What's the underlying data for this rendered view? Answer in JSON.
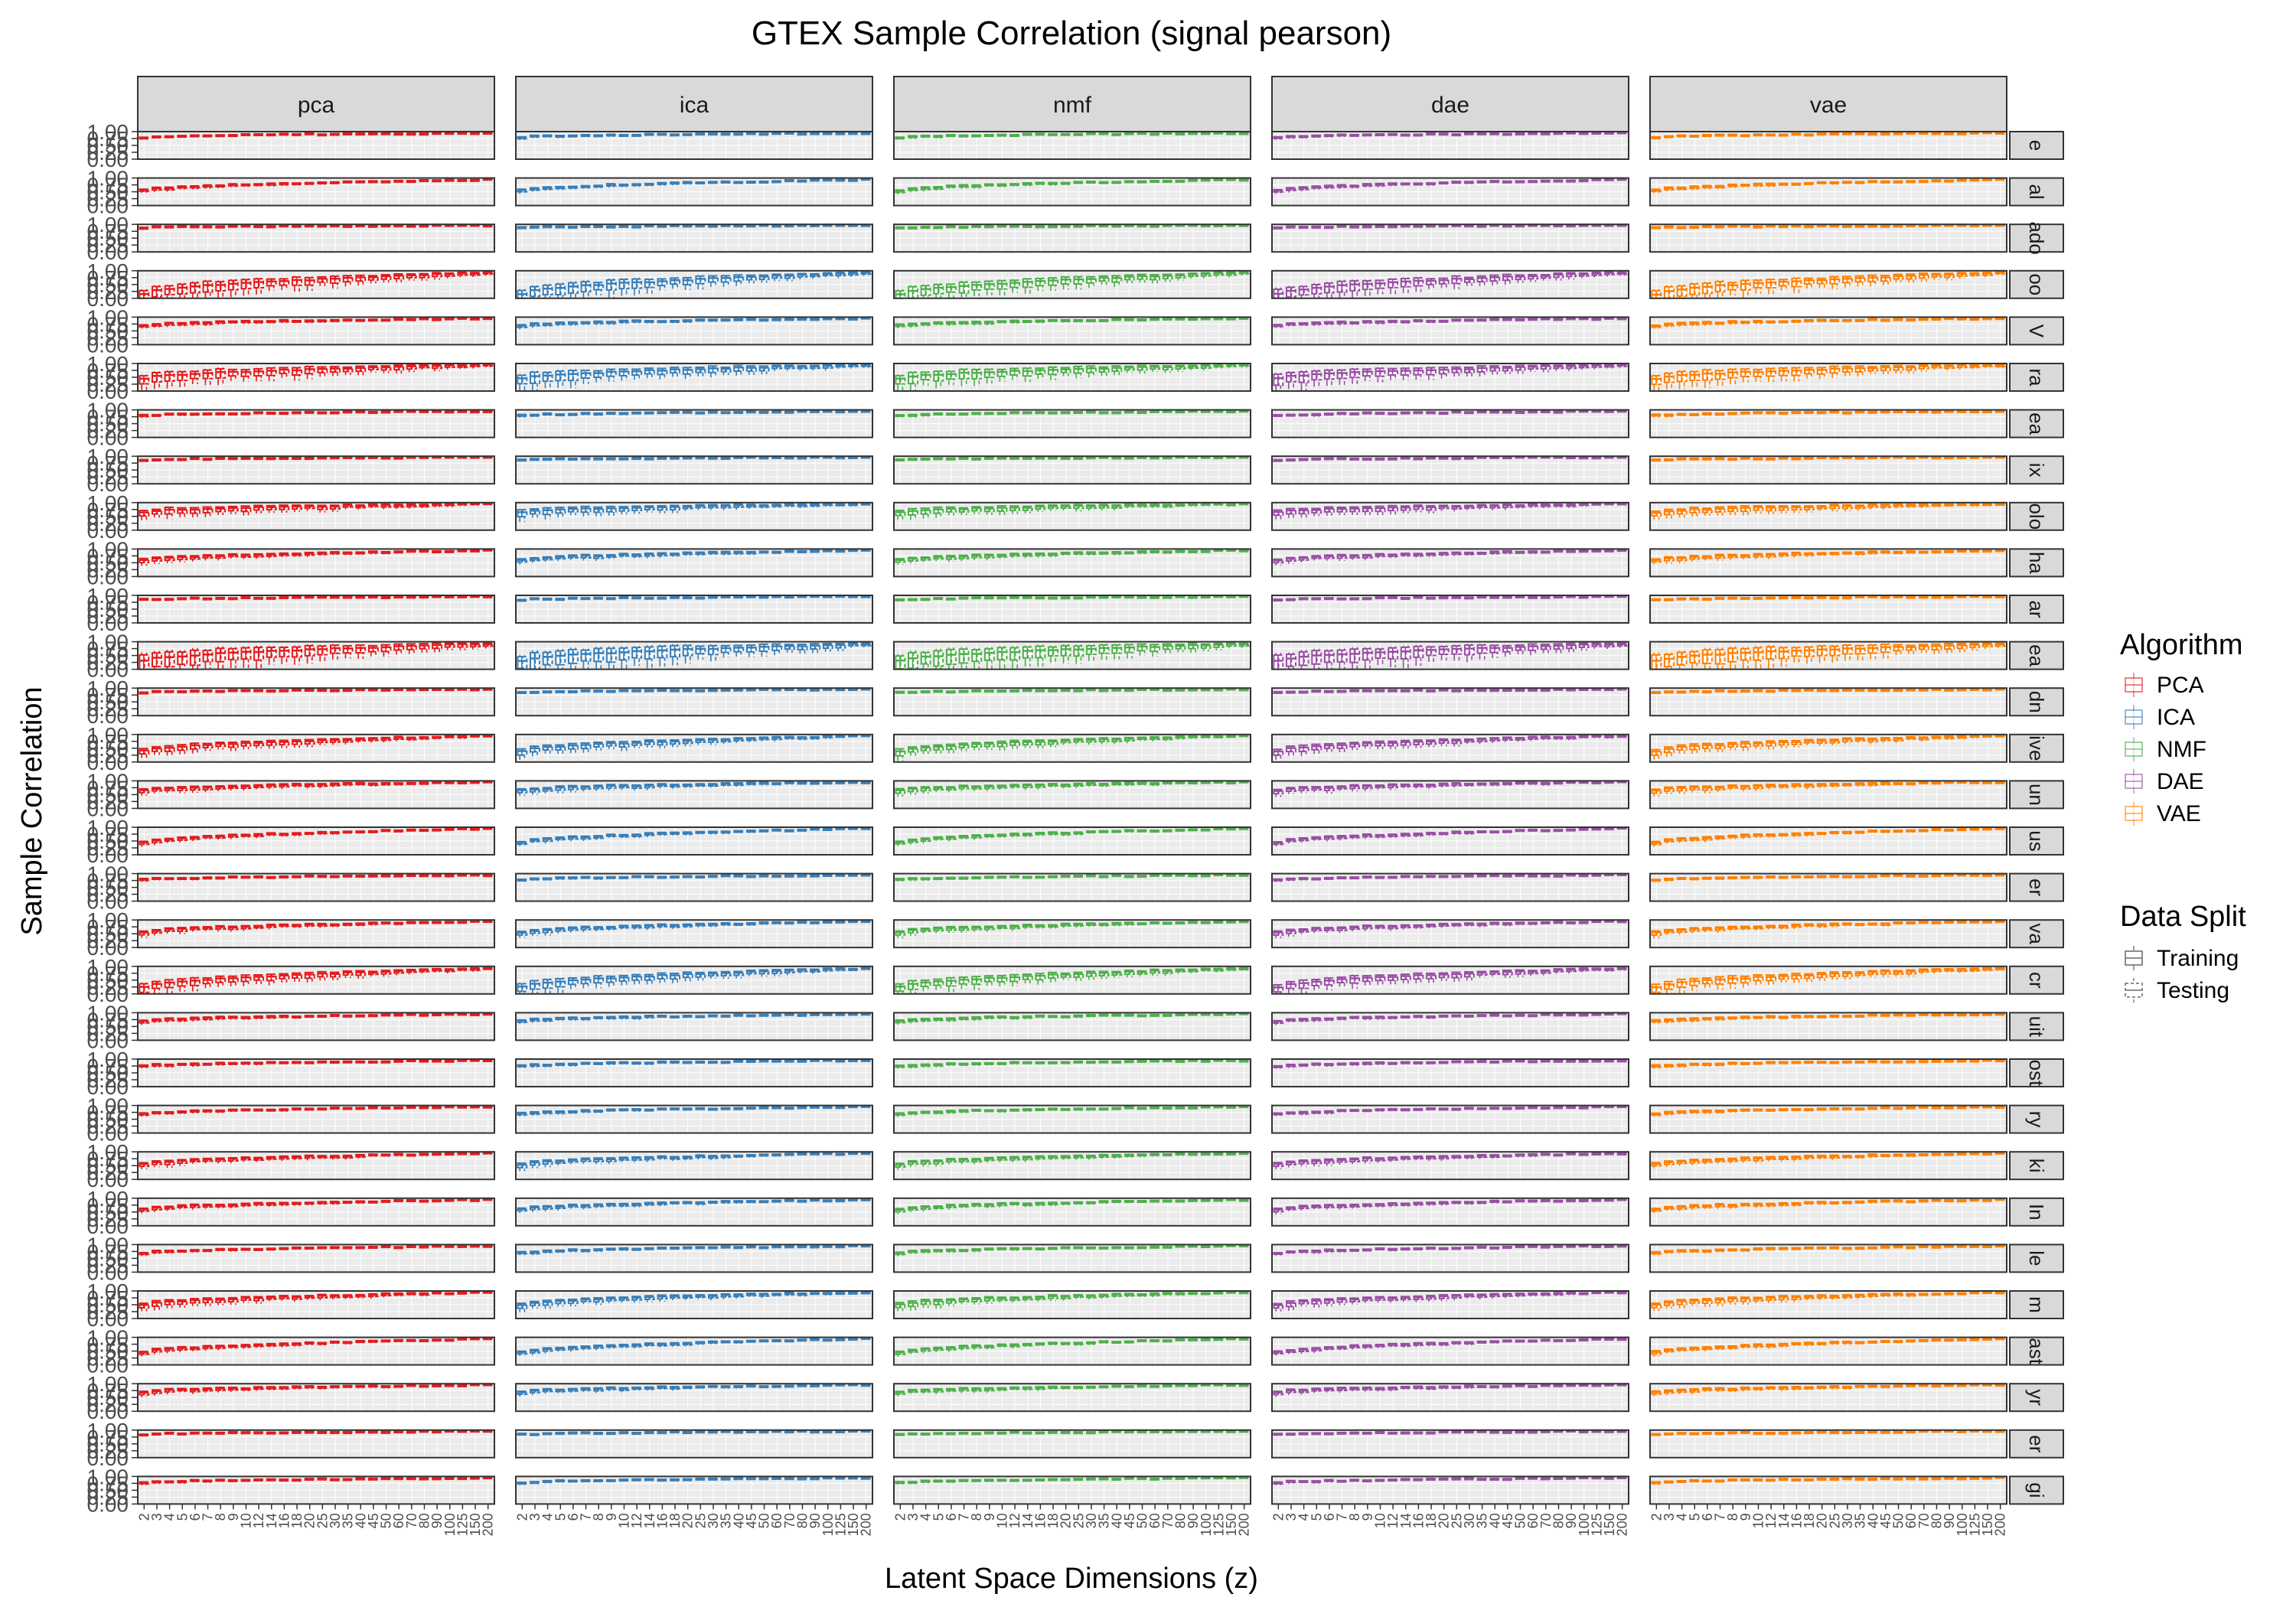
{
  "chart_data": {
    "type": "boxplot",
    "title": "GTEX Sample Correlation (signal pearson)",
    "xlabel": "Latent Space Dimensions (z)",
    "ylabel": "Sample Correlation",
    "ylim": [
      0,
      1
    ],
    "y_ticks": [
      "1.00",
      "0.75",
      "0.50",
      "0.25",
      "0.00"
    ],
    "grid": true,
    "panels": [
      "pca",
      "ica",
      "nmf",
      "dae",
      "vae"
    ],
    "row_strip_labels": [
      "e",
      "al",
      "ado",
      "oo",
      "V",
      "ra",
      "ea",
      "ix",
      "olo",
      "ha",
      "ar",
      "ea",
      "dn",
      "ive",
      "un",
      "us",
      "er",
      "va",
      "cr",
      "uit",
      "ost",
      "ry",
      "ki",
      "In",
      "le",
      "m",
      "ast",
      "yr",
      "er",
      "gi"
    ],
    "x_categories": [
      "2",
      "3",
      "4",
      "5",
      "6",
      "7",
      "8",
      "9",
      "10",
      "12",
      "14",
      "16",
      "18",
      "20",
      "25",
      "30",
      "35",
      "40",
      "45",
      "50",
      "60",
      "70",
      "80",
      "90",
      "100",
      "125",
      "150",
      "200"
    ],
    "series": [
      {
        "name": "PCA",
        "panel": "pca",
        "color": "#e41a1c"
      },
      {
        "name": "ICA",
        "panel": "ica",
        "color": "#377eb8"
      },
      {
        "name": "NMF",
        "panel": "nmf",
        "color": "#4daf4a"
      },
      {
        "name": "DAE",
        "panel": "dae",
        "color": "#984ea3"
      },
      {
        "name": "VAE",
        "panel": "vae",
        "color": "#ff7f00"
      }
    ],
    "row_profiles": [
      {
        "start": 0.8,
        "end": 0.97,
        "spread": 0.08
      },
      {
        "start": 0.55,
        "end": 0.96,
        "spread": 0.12
      },
      {
        "start": 0.9,
        "end": 0.99,
        "spread": 0.02
      },
      {
        "start": 0.15,
        "end": 0.93,
        "spread": 0.55
      },
      {
        "start": 0.7,
        "end": 0.97,
        "spread": 0.12
      },
      {
        "start": 0.45,
        "end": 0.95,
        "spread": 0.5
      },
      {
        "start": 0.8,
        "end": 0.97,
        "spread": 0.08
      },
      {
        "start": 0.88,
        "end": 0.99,
        "spread": 0.04
      },
      {
        "start": 0.65,
        "end": 0.96,
        "spread": 0.3
      },
      {
        "start": 0.6,
        "end": 0.96,
        "spread": 0.18
      },
      {
        "start": 0.85,
        "end": 0.98,
        "spread": 0.06
      },
      {
        "start": 0.3,
        "end": 0.92,
        "spread": 0.75
      },
      {
        "start": 0.85,
        "end": 0.98,
        "spread": 0.05
      },
      {
        "start": 0.4,
        "end": 0.96,
        "spread": 0.3
      },
      {
        "start": 0.65,
        "end": 0.97,
        "spread": 0.2
      },
      {
        "start": 0.45,
        "end": 0.97,
        "spread": 0.15
      },
      {
        "start": 0.78,
        "end": 0.97,
        "spread": 0.08
      },
      {
        "start": 0.55,
        "end": 0.96,
        "spread": 0.18
      },
      {
        "start": 0.25,
        "end": 0.93,
        "spread": 0.4
      },
      {
        "start": 0.7,
        "end": 0.97,
        "spread": 0.12
      },
      {
        "start": 0.75,
        "end": 0.97,
        "spread": 0.1
      },
      {
        "start": 0.7,
        "end": 0.97,
        "spread": 0.1
      },
      {
        "start": 0.55,
        "end": 0.96,
        "spread": 0.2
      },
      {
        "start": 0.6,
        "end": 0.96,
        "spread": 0.15
      },
      {
        "start": 0.7,
        "end": 0.97,
        "spread": 0.1
      },
      {
        "start": 0.5,
        "end": 0.96,
        "spread": 0.25
      },
      {
        "start": 0.45,
        "end": 0.96,
        "spread": 0.15
      },
      {
        "start": 0.7,
        "end": 0.97,
        "spread": 0.15
      },
      {
        "start": 0.85,
        "end": 0.98,
        "spread": 0.05
      },
      {
        "start": 0.78,
        "end": 0.97,
        "spread": 0.08
      }
    ],
    "legend": {
      "placement": "right",
      "algorithm": {
        "title": "Algorithm",
        "items": [
          "PCA",
          "ICA",
          "NMF",
          "DAE",
          "VAE"
        ]
      },
      "data_split": {
        "title": "Data Split",
        "items": [
          "Training",
          "Testing"
        ]
      }
    }
  }
}
